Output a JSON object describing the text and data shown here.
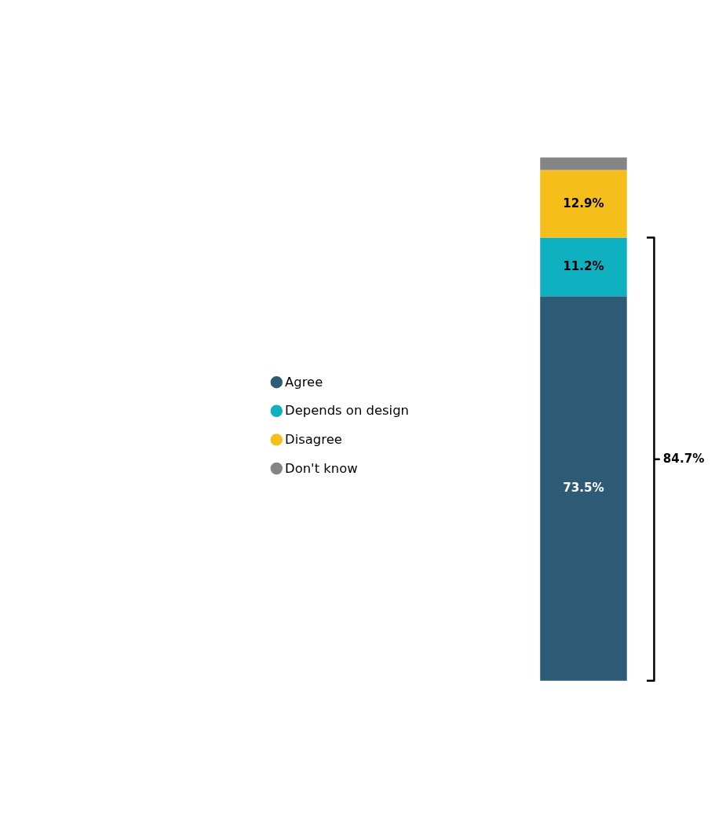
{
  "chart_data": {
    "type": "bar",
    "stacked": true,
    "categories": [
      null
    ],
    "ylim": [
      0,
      100
    ],
    "tick_labels": false,
    "legend": "left",
    "series": [
      {
        "name": "Agree",
        "color": "#2d5a74",
        "values": [
          73.5
        ],
        "value_labels": [
          "73.5%"
        ]
      },
      {
        "name": "Depends on design",
        "color": "#0fb0c0",
        "values": [
          11.2
        ],
        "value_labels": [
          "11.2%"
        ]
      },
      {
        "name": "Disagree",
        "color": "#f6be1a",
        "values": [
          12.9
        ],
        "value_labels": [
          "12.9%"
        ]
      },
      {
        "name": "Don't know",
        "color": "#858585",
        "values": [
          2.4
        ],
        "value_labels": [
          null
        ]
      }
    ],
    "annotations": [
      "84.7%"
    ]
  }
}
